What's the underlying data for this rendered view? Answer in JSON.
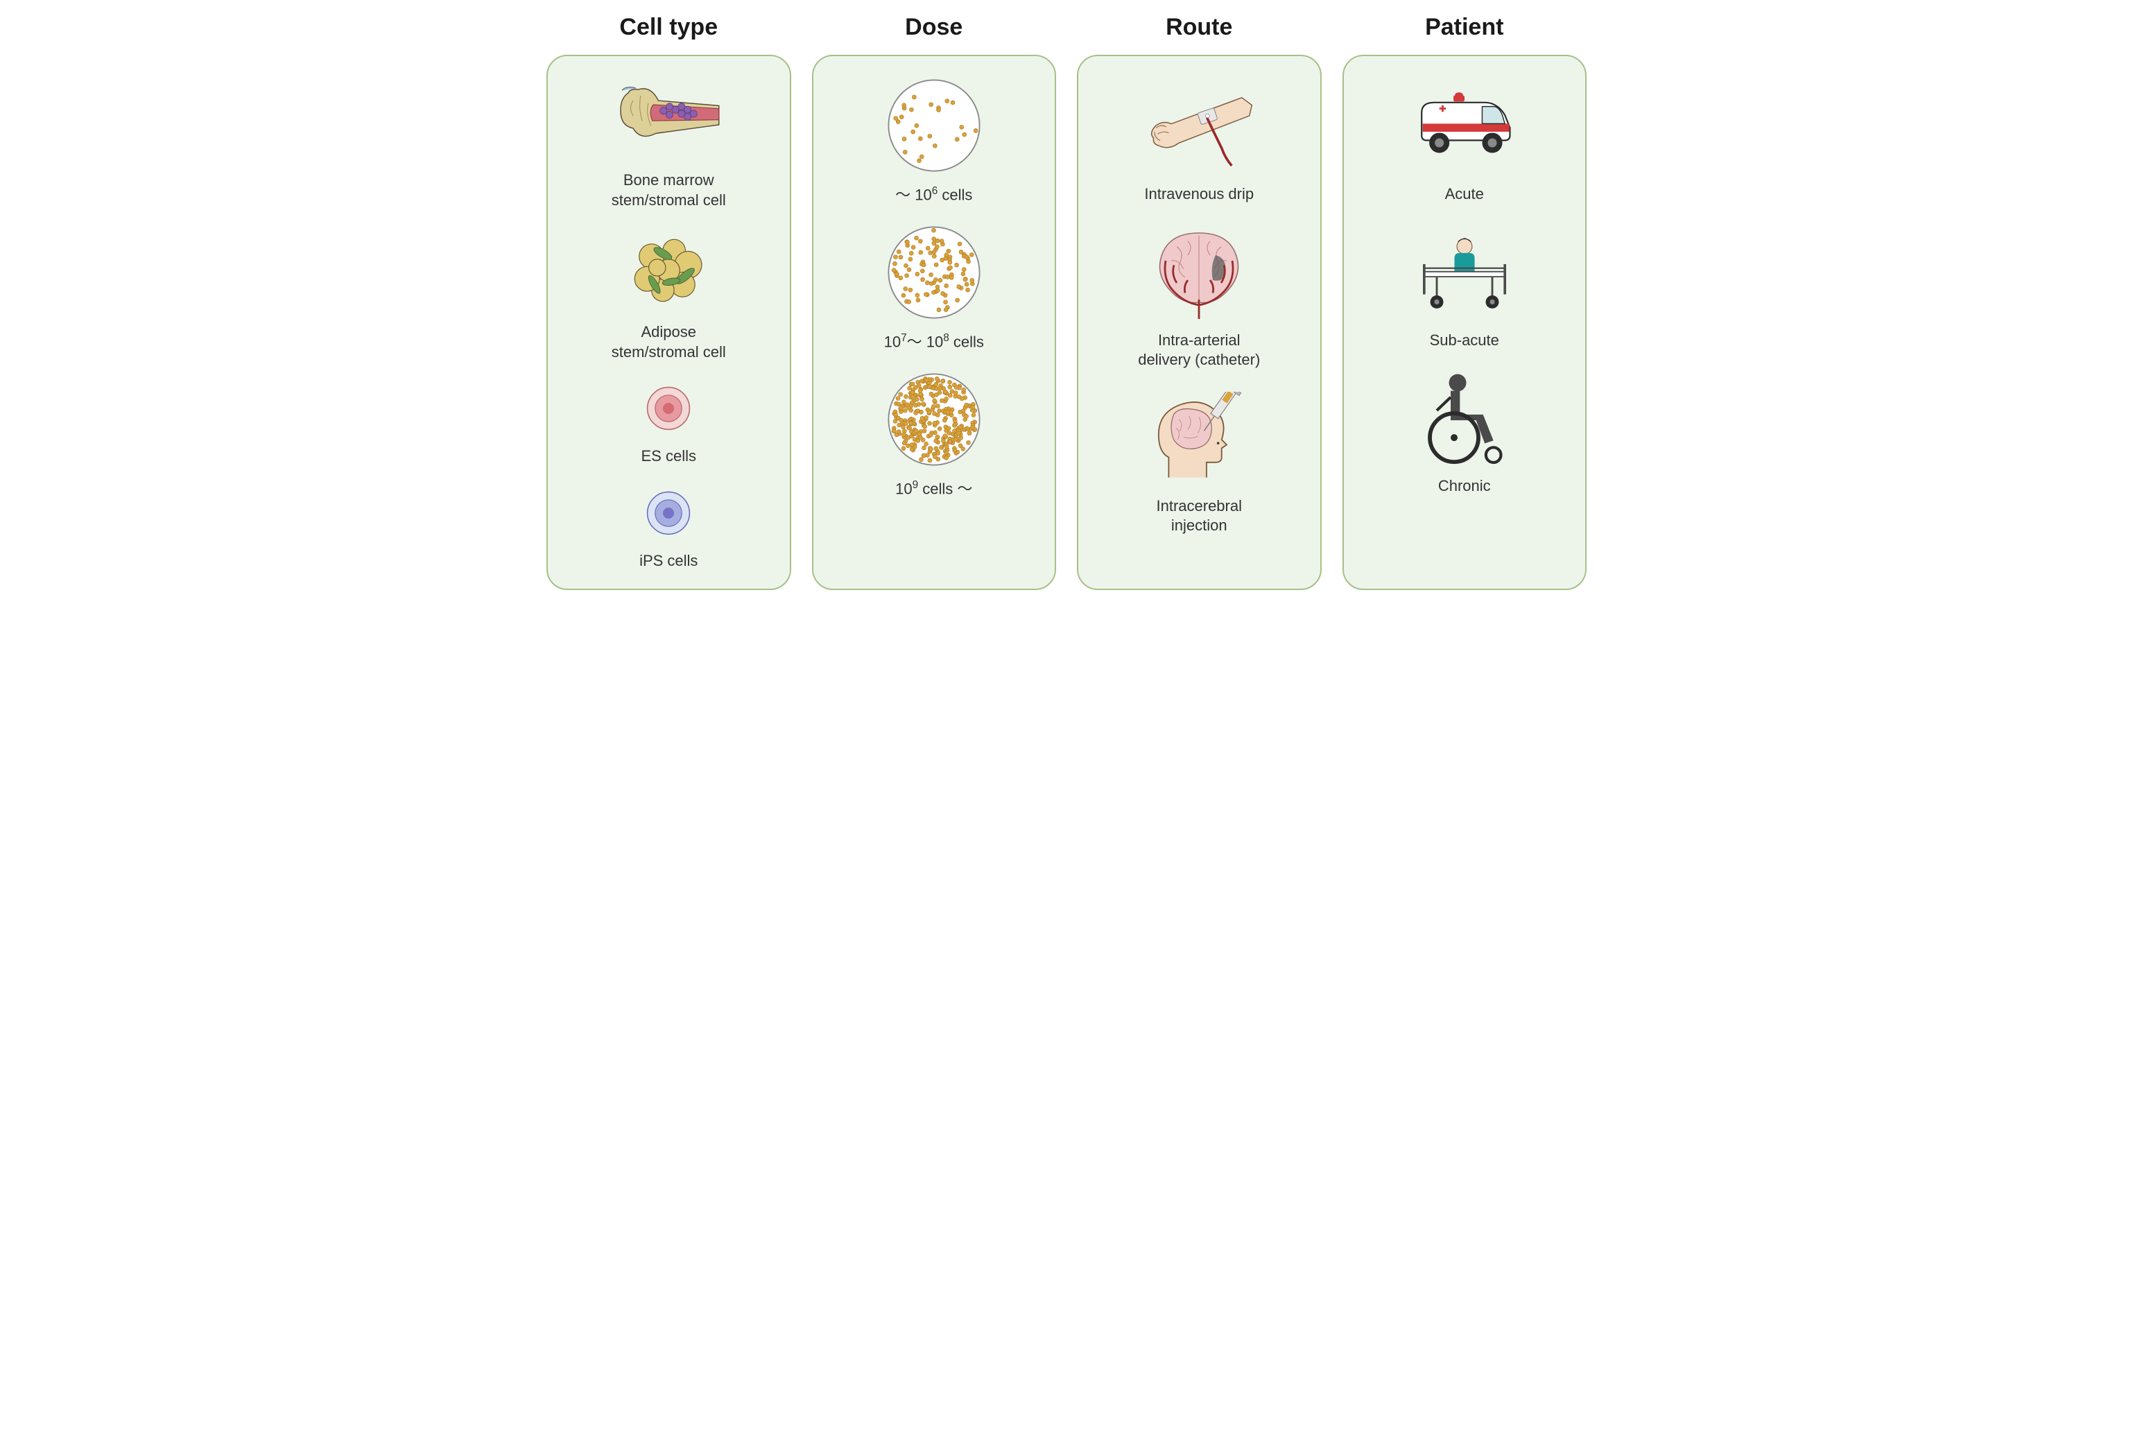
{
  "type": "infographic",
  "layout": {
    "columns": 4,
    "panel_bg": "#edf5eb",
    "panel_border": "#a7c088",
    "panel_radius": 30,
    "page_bg": "#ffffff"
  },
  "typography": {
    "title_fontsize": 34,
    "title_weight": "bold",
    "title_color": "#1a1a1a",
    "label_fontsize": 22,
    "label_color": "#333333"
  },
  "columns": [
    {
      "title": "Cell type",
      "items": [
        {
          "label": "Bone marrow\nstem/stromal cell",
          "icon": "bone-marrow",
          "colors": {
            "bone": "#ddd098",
            "marrow": "#d16b7a",
            "cells": "#8a5fb0",
            "outline": "#5a4a3a"
          }
        },
        {
          "label": "Adipose\nstem/stromal cell",
          "icon": "adipose",
          "colors": {
            "fat": "#e0cb74",
            "leaf": "#6a9c4e",
            "outline": "#6b5a2f"
          }
        },
        {
          "label": "ES cells",
          "icon": "es-cell",
          "colors": {
            "outer": "#f4d7d7",
            "inner": "#e79aa0",
            "core": "#d46a72",
            "outline": "#b86a6a"
          }
        },
        {
          "label": "iPS cells",
          "icon": "ips-cell",
          "colors": {
            "outer": "#dbe4f6",
            "inner": "#a6aee0",
            "core": "#7773c9",
            "outline": "#6b6fb8"
          }
        }
      ]
    },
    {
      "title": "Dose",
      "items": [
        {
          "label_html": "～ 10<sup>6</sup>  cells",
          "icon": "dose-circle",
          "density": 25,
          "colors": {
            "dot": "#d9a23a",
            "stroke": "#8a8a8a",
            "bg": "#ffffff"
          }
        },
        {
          "label_html": "10<sup>7</sup>～ 10<sup>8</sup>  cells",
          "icon": "dose-circle",
          "density": 100,
          "colors": {
            "dot": "#d9a23a",
            "stroke": "#8a8a8a",
            "bg": "#ffffff"
          }
        },
        {
          "label_html": "10<sup>9</sup> cells ～",
          "icon": "dose-circle",
          "density": 300,
          "colors": {
            "dot": "#d9a23a",
            "stroke": "#8a8a8a",
            "bg": "#ffffff"
          }
        }
      ]
    },
    {
      "title": "Route",
      "items": [
        {
          "label": "Intravenous drip",
          "icon": "iv-arm",
          "colors": {
            "skin": "#f3dcc3",
            "tube": "#9a2b2b",
            "tape": "#e8e8e8",
            "outline": "#7a5a3c"
          }
        },
        {
          "label": "Intra-arterial\ndelivery (catheter)",
          "icon": "brain-artery",
          "colors": {
            "brain": "#f0cacb",
            "vessel": "#9a2b2b",
            "lesion": "#5c5c5c",
            "outline": "#9a6e6e"
          }
        },
        {
          "label": "Intracerebral\ninjection",
          "icon": "head-syringe",
          "colors": {
            "skin": "#f3dcc3",
            "brain": "#f0cacb",
            "syringe": "#b8b8b8",
            "plunger": "#d9a23a",
            "outline": "#7a5a3c"
          }
        }
      ]
    },
    {
      "title": "Patient",
      "items": [
        {
          "label": "Acute",
          "icon": "ambulance",
          "colors": {
            "body": "#ffffff",
            "stripe": "#d43a3a",
            "wheel": "#2c2c2c",
            "window": "#cfe6e9",
            "outline": "#2c2c2c"
          }
        },
        {
          "label": "Sub-acute",
          "icon": "hospital-bed",
          "colors": {
            "person": "#1a9b9b",
            "skin": "#f3dcc3",
            "hair": "#2c2c2c",
            "frame": "#4a4a4a",
            "wheel": "#2c2c2c"
          }
        },
        {
          "label": "Chronic",
          "icon": "wheelchair",
          "colors": {
            "person": "#4a4a4a",
            "chair": "#2c2c2c"
          }
        }
      ]
    }
  ]
}
